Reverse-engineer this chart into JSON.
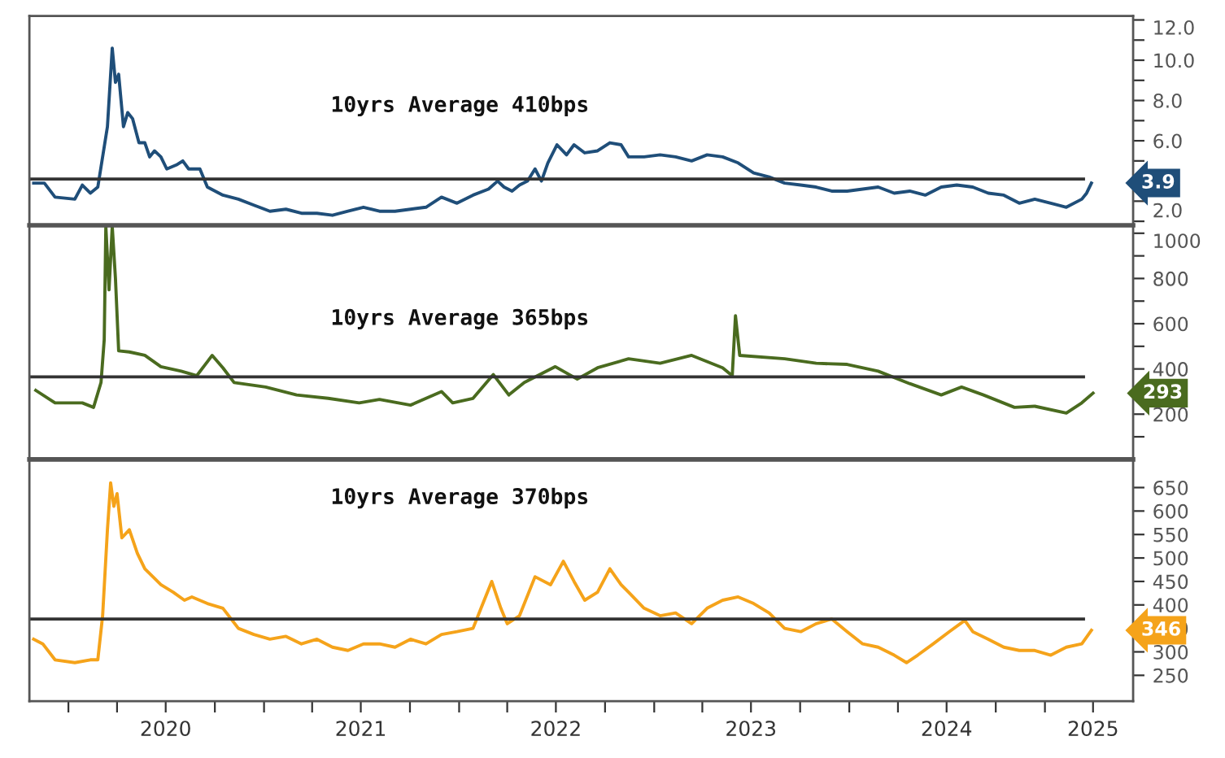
{
  "chart_data": [
    {
      "type": "line",
      "tick_labels": "y",
      "grid": false,
      "xlim": [
        "2019-10-20",
        "2025-06-15"
      ],
      "xticks": [
        {
          "value": "2020-01-01",
          "label": null
        },
        {
          "value": "2020-04-01",
          "label": null
        },
        {
          "value": "2020-07-01",
          "label": null
        },
        {
          "value": "2020-10-01",
          "label": null
        },
        {
          "value": "2021-01-01",
          "label": null
        },
        {
          "value": "2021-04-01",
          "label": null
        },
        {
          "value": "2021-07-01",
          "label": null
        },
        {
          "value": "2021-10-01",
          "label": null
        },
        {
          "value": "2022-01-01",
          "label": null
        },
        {
          "value": "2022-04-01",
          "label": null
        },
        {
          "value": "2022-07-01",
          "label": null
        },
        {
          "value": "2022-10-01",
          "label": null
        },
        {
          "value": "2023-01-01",
          "label": null
        },
        {
          "value": "2023-04-01",
          "label": null
        },
        {
          "value": "2023-07-01",
          "label": null
        },
        {
          "value": "2023-10-01",
          "label": null
        },
        {
          "value": "2024-01-01",
          "label": null
        },
        {
          "value": "2024-04-01",
          "label": null
        },
        {
          "value": "2024-07-01",
          "label": null
        },
        {
          "value": "2024-10-01",
          "label": null
        },
        {
          "value": "2025-01-01",
          "label": null
        },
        {
          "value": "2025-04-01",
          "label": null
        }
      ],
      "ylim": [
        1.8,
        12.2
      ],
      "yticks": [
        {
          "value": 2,
          "label": "2.0"
        },
        {
          "value": 3,
          "label": null
        },
        {
          "value": 4,
          "label": null
        },
        {
          "value": 5,
          "label": null
        },
        {
          "value": 6,
          "label": "6.0"
        },
        {
          "value": 7,
          "label": null
        },
        {
          "value": 8,
          "label": "8.0"
        },
        {
          "value": 9,
          "label": null
        },
        {
          "value": 10,
          "label": "10.0"
        },
        {
          "value": 11,
          "label": null
        },
        {
          "value": 12,
          "label": "12.0"
        }
      ],
      "ref_lines": [
        {
          "axis": "y",
          "value": 4.1,
          "label": "10yrs Average 410bps",
          "color": "#333333"
        }
      ],
      "annotations": [
        {
          "text": "3.9",
          "x": "2025-03-29",
          "y": 3.9
        }
      ],
      "series": [
        {
          "color": "#1f4e79",
          "x": [
            "2019-10-28",
            "2019-11-17",
            "2019-12-07",
            "2020-01-13",
            "2020-01-27",
            "2020-02-11",
            "2020-02-25",
            "2020-03-02",
            "2020-03-14",
            "2020-03-23",
            "2020-03-29",
            "2020-04-04",
            "2020-04-13",
            "2020-04-21",
            "2020-04-30",
            "2020-05-12",
            "2020-05-23",
            "2020-06-01",
            "2020-06-10",
            "2020-06-22",
            "2020-07-03",
            "2020-07-21",
            "2020-08-02",
            "2020-08-13",
            "2020-08-22",
            "2020-09-03",
            "2020-09-17",
            "2020-10-16",
            "2020-11-14",
            "2020-12-13",
            "2021-01-12",
            "2021-02-11",
            "2021-03-12",
            "2021-04-10",
            "2021-05-09",
            "2021-06-07",
            "2021-07-06",
            "2021-08-05",
            "2021-09-03",
            "2021-10-02",
            "2021-10-31",
            "2021-11-29",
            "2021-12-28",
            "2022-01-27",
            "2022-02-25",
            "2022-03-14",
            "2022-03-26",
            "2022-04-10",
            "2022-04-24",
            "2022-05-09",
            "2022-05-23",
            "2022-06-04",
            "2022-06-16",
            "2022-07-03",
            "2022-07-21",
            "2022-08-04",
            "2022-08-24",
            "2022-09-17",
            "2022-10-10",
            "2022-10-31",
            "2022-11-14",
            "2022-12-13",
            "2023-01-12",
            "2023-02-10",
            "2023-03-12",
            "2023-04-10",
            "2023-05-09",
            "2023-06-07",
            "2023-07-06",
            "2023-08-04",
            "2023-09-02",
            "2023-10-02",
            "2023-10-31",
            "2023-11-29",
            "2023-12-28",
            "2024-01-26",
            "2024-02-24",
            "2024-03-25",
            "2024-04-23",
            "2024-05-22",
            "2024-06-21",
            "2024-07-20",
            "2024-08-19",
            "2024-09-17",
            "2024-10-16",
            "2024-11-14",
            "2024-12-13",
            "2025-01-12",
            "2025-02-10",
            "2025-03-11",
            "2025-03-20",
            "2025-03-29"
          ],
          "values": [
            3.9,
            3.9,
            3.2,
            3.1,
            3.8,
            3.4,
            3.7,
            4.7,
            6.7,
            10.6,
            8.9,
            9.3,
            6.7,
            7.4,
            7.1,
            5.9,
            5.9,
            5.2,
            5.5,
            5.2,
            4.6,
            4.8,
            5.0,
            4.6,
            4.6,
            4.6,
            3.7,
            3.3,
            3.1,
            2.8,
            2.5,
            2.6,
            2.4,
            2.4,
            2.3,
            2.5,
            2.7,
            2.5,
            2.5,
            2.6,
            2.7,
            3.2,
            2.9,
            3.3,
            3.6,
            4.0,
            3.7,
            3.5,
            3.8,
            4.0,
            4.6,
            4.0,
            4.9,
            5.8,
            5.3,
            5.8,
            5.4,
            5.5,
            5.9,
            5.8,
            5.2,
            5.2,
            5.3,
            5.2,
            5.0,
            5.3,
            5.2,
            4.9,
            4.4,
            4.2,
            3.9,
            3.8,
            3.7,
            3.5,
            3.5,
            3.6,
            3.7,
            3.4,
            3.5,
            3.3,
            3.7,
            3.8,
            3.7,
            3.4,
            3.3,
            2.9,
            3.1,
            2.9,
            2.7,
            3.1,
            3.4,
            3.9
          ]
        }
      ]
    },
    {
      "type": "line",
      "tick_labels": "y",
      "grid": false,
      "xlim": [
        "2019-10-20",
        "2025-06-15"
      ],
      "xticks": [
        {
          "value": "2020-01-01",
          "label": null
        },
        {
          "value": "2020-04-01",
          "label": null
        },
        {
          "value": "2020-07-01",
          "label": null
        },
        {
          "value": "2020-10-01",
          "label": null
        },
        {
          "value": "2021-01-01",
          "label": null
        },
        {
          "value": "2021-04-01",
          "label": null
        },
        {
          "value": "2021-07-01",
          "label": null
        },
        {
          "value": "2021-10-01",
          "label": null
        },
        {
          "value": "2022-01-01",
          "label": null
        },
        {
          "value": "2022-04-01",
          "label": null
        },
        {
          "value": "2022-07-01",
          "label": null
        },
        {
          "value": "2022-10-01",
          "label": null
        },
        {
          "value": "2023-01-01",
          "label": null
        },
        {
          "value": "2023-04-01",
          "label": null
        },
        {
          "value": "2023-07-01",
          "label": null
        },
        {
          "value": "2023-10-01",
          "label": null
        },
        {
          "value": "2024-01-01",
          "label": null
        },
        {
          "value": "2024-04-01",
          "label": null
        },
        {
          "value": "2024-07-01",
          "label": null
        },
        {
          "value": "2024-10-01",
          "label": null
        },
        {
          "value": "2025-01-01",
          "label": null
        },
        {
          "value": "2025-04-01",
          "label": null
        }
      ],
      "ylim": [
        0,
        1035
      ],
      "yticks": [
        {
          "value": 100,
          "label": null
        },
        200,
        {
          "value": 300,
          "label": null
        },
        400,
        {
          "value": 500,
          "label": null
        },
        600,
        {
          "value": 700,
          "label": null
        },
        800,
        {
          "value": 900,
          "label": null
        },
        1000
      ],
      "ref_lines": [
        {
          "axis": "y",
          "value": 365,
          "label": "10yrs Average 365bps",
          "color": "#333333"
        }
      ],
      "annotations": [
        {
          "text": "293",
          "x": "2025-04-01",
          "y": 293
        }
      ],
      "series": [
        {
          "color": "#4a6b1f",
          "x": [
            "2019-11-01",
            "2019-12-07",
            "2020-01-27",
            "2020-02-17",
            "2020-03-02",
            "2020-03-08",
            "2020-03-11",
            "2020-03-17",
            "2020-03-23",
            "2020-03-29",
            "2020-04-04",
            "2020-04-24",
            "2020-05-23",
            "2020-06-22",
            "2020-07-30",
            "2020-08-28",
            "2020-09-26",
            "2020-10-16",
            "2020-11-06",
            "2021-01-04",
            "2021-03-03",
            "2021-05-01",
            "2021-06-28",
            "2021-08-05",
            "2021-10-02",
            "2021-11-29",
            "2021-12-20",
            "2022-01-27",
            "2022-03-06",
            "2022-04-04",
            "2022-05-03",
            "2022-06-30",
            "2022-08-10",
            "2022-09-17",
            "2022-11-14",
            "2023-01-12",
            "2023-03-12",
            "2023-05-09",
            "2023-05-27",
            "2023-06-02",
            "2023-06-10",
            "2023-09-02",
            "2023-10-31",
            "2023-12-28",
            "2024-02-24",
            "2024-04-23",
            "2024-06-21",
            "2024-07-29",
            "2024-09-08",
            "2024-11-05",
            "2024-12-13",
            "2025-02-10",
            "2025-03-11",
            "2025-04-01"
          ],
          "values": [
            305,
            250,
            250,
            230,
            340,
            530,
            1030,
            750,
            1030,
            800,
            480,
            475,
            460,
            410,
            390,
            370,
            460,
            405,
            340,
            320,
            285,
            270,
            250,
            265,
            240,
            300,
            250,
            270,
            375,
            285,
            340,
            410,
            355,
            405,
            445,
            425,
            460,
            405,
            370,
            635,
            460,
            445,
            425,
            420,
            390,
            335,
            285,
            320,
            285,
            230,
            235,
            205,
            250,
            293
          ]
        }
      ]
    },
    {
      "type": "line",
      "grid": false,
      "xlim": [
        "2019-10-20",
        "2025-06-15"
      ],
      "xticks": [
        {
          "value": "2020-01-01",
          "label": null
        },
        {
          "value": "2020-04-01",
          "label": null
        },
        {
          "value": "2020-07-01",
          "label": "2020"
        },
        {
          "value": "2020-10-01",
          "label": null
        },
        {
          "value": "2021-01-01",
          "label": null
        },
        {
          "value": "2021-04-01",
          "label": null
        },
        {
          "value": "2021-07-01",
          "label": "2021"
        },
        {
          "value": "2021-10-01",
          "label": null
        },
        {
          "value": "2022-01-01",
          "label": null
        },
        {
          "value": "2022-04-01",
          "label": null
        },
        {
          "value": "2022-07-01",
          "label": "2022"
        },
        {
          "value": "2022-10-01",
          "label": null
        },
        {
          "value": "2023-01-01",
          "label": null
        },
        {
          "value": "2023-04-01",
          "label": null
        },
        {
          "value": "2023-07-01",
          "label": "2023"
        },
        {
          "value": "2023-10-01",
          "label": null
        },
        {
          "value": "2024-01-01",
          "label": null
        },
        {
          "value": "2024-04-01",
          "label": null
        },
        {
          "value": "2024-07-01",
          "label": "2024"
        },
        {
          "value": "2024-10-01",
          "label": null
        },
        {
          "value": "2025-01-01",
          "label": null
        },
        {
          "value": "2025-04-01",
          "label": "2025"
        }
      ],
      "ylim": [
        195,
        710
      ],
      "yticks": [
        250,
        300,
        350,
        400,
        450,
        500,
        550,
        600,
        650
      ],
      "ref_lines": [
        {
          "axis": "y",
          "value": 370,
          "label": "10yrs Average 370bps",
          "color": "#333333"
        }
      ],
      "annotations": [
        {
          "text": "346",
          "x": "2025-03-29",
          "y": 346
        }
      ],
      "series": [
        {
          "color": "#f5a31a",
          "x": [
            "2019-10-28",
            "2019-11-14",
            "2019-12-07",
            "2020-01-13",
            "2020-02-11",
            "2020-02-25",
            "2020-03-05",
            "2020-03-14",
            "2020-03-20",
            "2020-03-26",
            "2020-04-01",
            "2020-04-10",
            "2020-04-24",
            "2020-05-09",
            "2020-05-23",
            "2020-06-07",
            "2020-06-22",
            "2020-07-15",
            "2020-08-05",
            "2020-08-19",
            "2020-09-17",
            "2020-10-16",
            "2020-11-14",
            "2020-12-13",
            "2021-01-12",
            "2021-02-11",
            "2021-03-12",
            "2021-04-10",
            "2021-05-09",
            "2021-06-07",
            "2021-07-06",
            "2021-08-05",
            "2021-09-03",
            "2021-10-02",
            "2021-10-31",
            "2021-11-29",
            "2021-12-28",
            "2022-01-27",
            "2022-02-11",
            "2022-03-03",
            "2022-03-20",
            "2022-04-01",
            "2022-04-24",
            "2022-05-23",
            "2022-06-21",
            "2022-07-15",
            "2022-08-04",
            "2022-08-24",
            "2022-09-17",
            "2022-10-10",
            "2022-10-31",
            "2022-11-14",
            "2022-12-13",
            "2023-01-12",
            "2023-02-10",
            "2023-03-12",
            "2023-04-10",
            "2023-05-09",
            "2023-06-07",
            "2023-07-06",
            "2023-08-04",
            "2023-09-02",
            "2023-10-02",
            "2023-10-31",
            "2023-11-29",
            "2023-12-28",
            "2024-01-26",
            "2024-02-24",
            "2024-03-25",
            "2024-04-17",
            "2024-05-08",
            "2024-06-06",
            "2024-07-06",
            "2024-08-04",
            "2024-08-19",
            "2024-09-17",
            "2024-10-16",
            "2024-11-14",
            "2024-12-13",
            "2025-01-12",
            "2025-02-10",
            "2025-03-11",
            "2025-03-29"
          ],
          "values": [
            327,
            317,
            283,
            277,
            283,
            283,
            377,
            560,
            660,
            610,
            637,
            543,
            560,
            510,
            477,
            460,
            443,
            427,
            410,
            417,
            403,
            393,
            350,
            337,
            327,
            333,
            317,
            327,
            310,
            303,
            317,
            317,
            310,
            327,
            317,
            337,
            343,
            350,
            393,
            450,
            393,
            360,
            377,
            460,
            443,
            493,
            450,
            410,
            427,
            477,
            443,
            427,
            393,
            377,
            383,
            360,
            393,
            410,
            417,
            403,
            383,
            350,
            343,
            360,
            370,
            343,
            317,
            310,
            293,
            277,
            293,
            317,
            343,
            367,
            343,
            327,
            310,
            303,
            303,
            293,
            310,
            317,
            346
          ]
        }
      ]
    }
  ]
}
